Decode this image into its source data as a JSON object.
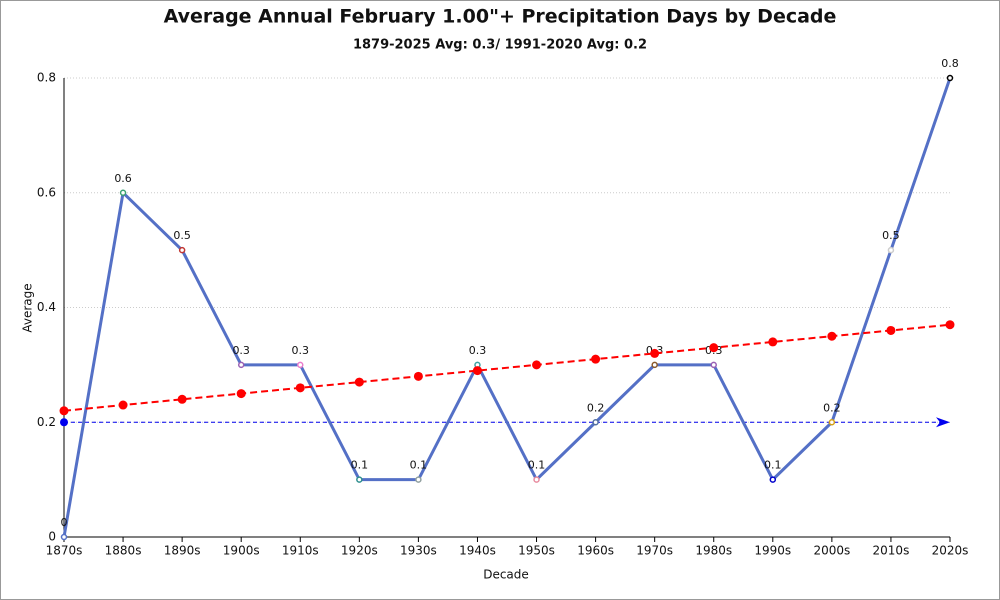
{
  "chart_data": {
    "type": "line",
    "title": "Average Annual February 1.00\"+ Precipitation Days by Decade",
    "subtitle": "1879-2025 Avg: 0.3/ 1991-2020 Avg: 0.2",
    "x_label": "Decade",
    "y_label": "Average",
    "categories": [
      "1870s",
      "1880s",
      "1890s",
      "1900s",
      "1910s",
      "1920s",
      "1930s",
      "1940s",
      "1950s",
      "1960s",
      "1970s",
      "1980s",
      "1990s",
      "2000s",
      "2010s",
      "2020s"
    ],
    "series": [
      {
        "color": "#5470c6",
        "values": [
          0,
          0.6,
          0.5,
          0.3,
          0.3,
          0.1,
          0.1,
          0.3,
          0.1,
          0.2,
          0.3,
          0.3,
          0.1,
          0.2,
          0.5,
          0.8
        ],
        "marker_colors": [
          "#5470c6",
          "#3ba272",
          "#c23531",
          "#9a60b4",
          "#ea7ccc",
          "#2f8f8f",
          "#91a0a0",
          "#3ba2a2",
          "#e88ca0",
          "#5470a0",
          "#8b5a2b",
          "#9a60b4",
          "#0000cc",
          "#d4a017",
          "#cccccc",
          "#000000"
        ],
        "data_labels": true
      },
      {
        "color": "#ff0000",
        "values": [
          0.22,
          0.23,
          0.24,
          0.25,
          0.26,
          0.27,
          0.28,
          0.29,
          0.3,
          0.31,
          0.32,
          0.33,
          0.34,
          0.35,
          0.36,
          0.37
        ],
        "dashed": true
      }
    ],
    "avg_line": {
      "value": 0.2,
      "color": "#0000ee"
    },
    "ylim": [
      0,
      0.8
    ],
    "yticks": [
      0,
      0.2,
      0.4,
      0.6,
      0.8
    ],
    "grid": true
  }
}
